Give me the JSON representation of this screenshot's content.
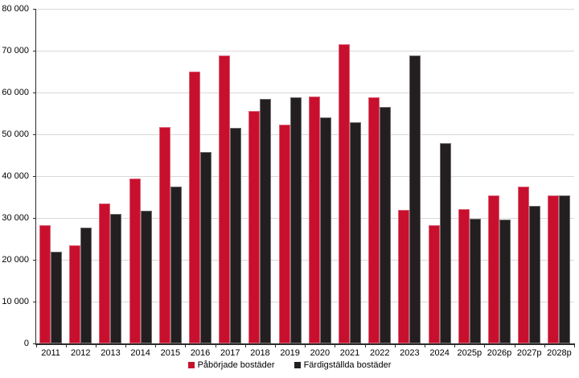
{
  "chart_data": {
    "type": "bar",
    "title": "",
    "xlabel": "",
    "ylabel": "",
    "categories": [
      "2011",
      "2012",
      "2013",
      "2014",
      "2015",
      "2016",
      "2017",
      "2018",
      "2019",
      "2020",
      "2021",
      "2022",
      "2023",
      "2024",
      "2025p",
      "2026p",
      "2027p",
      "2028p"
    ],
    "series": [
      {
        "name": "Påbörjade bostäder",
        "color": "#c8102e",
        "values": [
          28400,
          23500,
          33500,
          39500,
          51700,
          65100,
          68800,
          55600,
          52400,
          59100,
          71500,
          58900,
          32000,
          28400,
          32100,
          35500,
          37600,
          35500
        ]
      },
      {
        "name": "Färdigställda bostäder",
        "color": "#231f20",
        "values": [
          21900,
          27800,
          31100,
          31700,
          37600,
          45800,
          51600,
          58400,
          58900,
          54000,
          52900,
          56600,
          68900,
          48000,
          29900,
          29700,
          33000,
          35400
        ]
      }
    ],
    "ylim": [
      0,
      80000
    ],
    "ytick_step": 10000,
    "ytick_labels": [
      "0",
      "10 000",
      "20 000",
      "30 000",
      "40 000",
      "50 000",
      "60 000",
      "70 000",
      "80 000"
    ],
    "grid": true,
    "gridline_color": "#d9d9d9",
    "axis_color": "#2b2b2b",
    "background": "#ffffff",
    "legend_position": "bottom-center"
  }
}
